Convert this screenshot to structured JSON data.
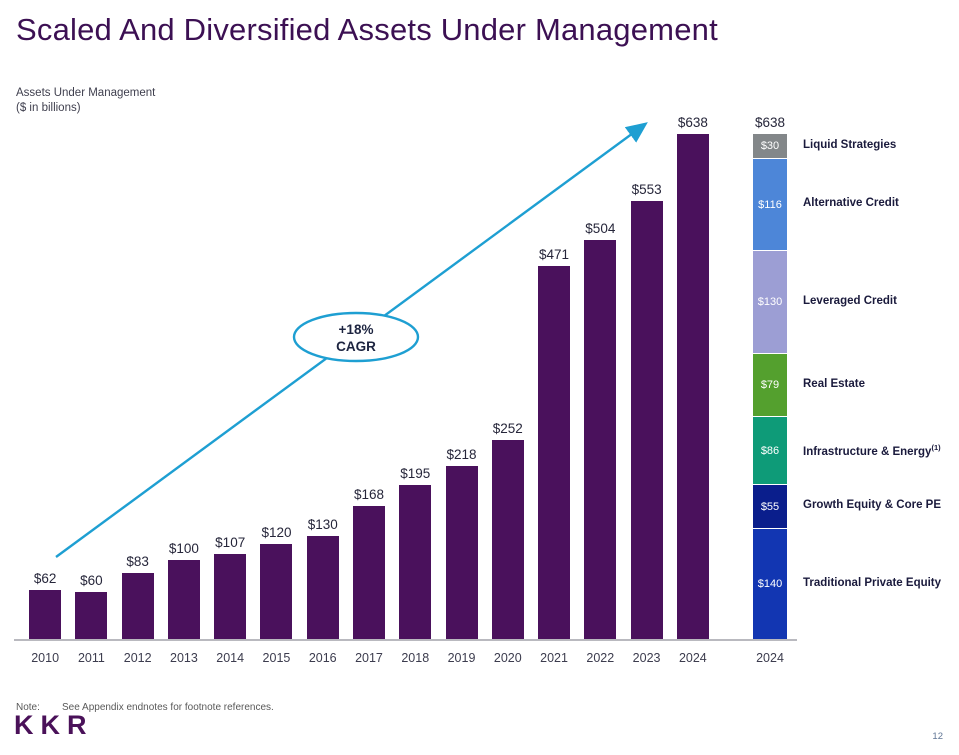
{
  "slide": {
    "title": "Scaled And Diversified Assets Under Management",
    "subtitle_line1": "Assets Under Management",
    "subtitle_line2": "($ in billions)",
    "note_label": "Note:",
    "note_text": "See Appendix endnotes for footnote references.",
    "logo_text": "KKR",
    "page_number": "12"
  },
  "colors": {
    "title_purple": "#3C1053",
    "bar_purple": "#4A115C",
    "arrow_cyan": "#1E9FD2",
    "axis_line": "#B9B9BF",
    "legend_text": "#1A1A3C"
  },
  "chart_data": {
    "type": "bar",
    "title": "Assets Under Management",
    "units": "$ in billions",
    "categories": [
      "2010",
      "2011",
      "2012",
      "2013",
      "2014",
      "2015",
      "2016",
      "2017",
      "2018",
      "2019",
      "2020",
      "2021",
      "2022",
      "2023",
      "2024"
    ],
    "values": [
      62,
      60,
      83,
      100,
      107,
      120,
      130,
      168,
      195,
      218,
      252,
      471,
      504,
      553,
      638
    ],
    "bar_labels": [
      "$62",
      "$60",
      "$83",
      "$100",
      "$107",
      "$120",
      "$130",
      "$168",
      "$195",
      "$218",
      "$252",
      "$471",
      "$504",
      "$553",
      "$638"
    ],
    "bar_color": "#4A115C",
    "ylim": [
      0,
      638
    ],
    "grid": false,
    "y_axis_visible": false,
    "annotation": {
      "line1": "+18%",
      "line2": "CAGR",
      "shape": "ellipse",
      "trend_arrow": true
    },
    "stacked_2024": {
      "category": "2024",
      "total": 638,
      "total_label": "$638",
      "segments_top_to_bottom": [
        {
          "label": "Liquid Strategies",
          "superscript": "",
          "value": 30,
          "value_label": "$30",
          "color": "#838789"
        },
        {
          "label": "Alternative Credit",
          "superscript": "",
          "value": 116,
          "value_label": "$116",
          "color": "#4D86D8"
        },
        {
          "label": "Leveraged Credit",
          "superscript": "",
          "value": 130,
          "value_label": "$130",
          "color": "#9C9ED4"
        },
        {
          "label": "Real Estate",
          "superscript": "",
          "value": 79,
          "value_label": "$79",
          "color": "#54A02E"
        },
        {
          "label": "Infrastructure & Energy",
          "superscript": "(1)",
          "value": 86,
          "value_label": "$86",
          "color": "#0E9B78"
        },
        {
          "label": "Growth Equity & Core PE",
          "superscript": "",
          "value": 55,
          "value_label": "$55",
          "color": "#0A1E8C"
        },
        {
          "label": "Traditional Private Equity",
          "superscript": "",
          "value": 140,
          "value_label": "$140",
          "color": "#1236B2"
        }
      ]
    }
  }
}
